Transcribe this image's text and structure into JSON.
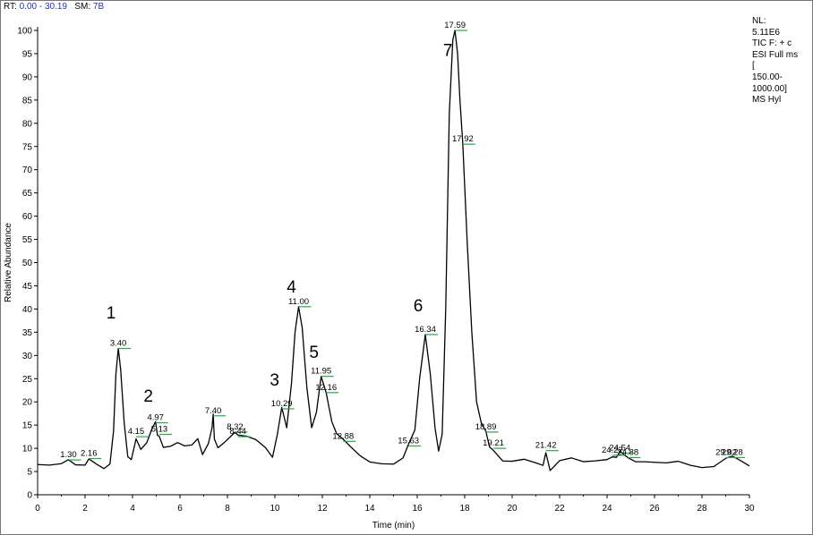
{
  "header": {
    "rt_label": "RT:",
    "rt_value": "0.00 - 30.19",
    "sm_label": "SM:",
    "sm_value": "7B"
  },
  "nl_info": [
    "NL:",
    "5.11E6",
    "TIC F: + c",
    "ESI Full ms",
    "[",
    "150.00-",
    "1000.00]",
    "MS Hyl"
  ],
  "colors": {
    "trace": "#000000",
    "peak_marker": "#22aa44",
    "header_value": "#2233bb"
  },
  "chart_data": {
    "type": "line",
    "xlabel": "Time (min)",
    "ylabel": "Relative Abundance",
    "xlim": [
      0,
      30
    ],
    "ylim": [
      0,
      100
    ],
    "x_ticks": [
      0,
      2,
      4,
      6,
      8,
      10,
      12,
      14,
      16,
      18,
      20,
      22,
      24,
      26,
      28,
      30
    ],
    "y_ticks": [
      0,
      5,
      10,
      15,
      20,
      25,
      30,
      35,
      40,
      45,
      50,
      55,
      60,
      65,
      70,
      75,
      80,
      85,
      90,
      95,
      100
    ],
    "peaks": [
      {
        "rt": 1.3,
        "y": 7.5,
        "label": "1.30"
      },
      {
        "rt": 2.16,
        "y": 7.8,
        "label": "2.16"
      },
      {
        "rt": 3.4,
        "y": 31.5,
        "label": "3.40",
        "marker": "1",
        "marker_y": 38
      },
      {
        "rt": 4.15,
        "y": 12.5,
        "label": "4.15"
      },
      {
        "rt": 4.97,
        "y": 15.5,
        "label": "4.97",
        "marker": "2",
        "marker_y": 20
      },
      {
        "rt": 5.13,
        "y": 13.0,
        "label": "5.13"
      },
      {
        "rt": 7.4,
        "y": 17.0,
        "label": "7.40"
      },
      {
        "rt": 8.32,
        "y": 13.5,
        "label": "8.32"
      },
      {
        "rt": 8.44,
        "y": 12.5,
        "label": "8.44"
      },
      {
        "rt": 10.29,
        "y": 18.5,
        "label": "10.29",
        "marker": "3",
        "marker_y": 23.5
      },
      {
        "rt": 11.0,
        "y": 40.5,
        "label": "11.00",
        "marker": "4",
        "marker_y": 43.5
      },
      {
        "rt": 11.95,
        "y": 25.5,
        "label": "11.95",
        "marker": "5",
        "marker_y": 29.5
      },
      {
        "rt": 12.16,
        "y": 22.0,
        "label": "12.16"
      },
      {
        "rt": 12.88,
        "y": 11.5,
        "label": "12.88"
      },
      {
        "rt": 15.63,
        "y": 10.5,
        "label": "15.63"
      },
      {
        "rt": 16.34,
        "y": 34.5,
        "label": "16.34",
        "marker": "6",
        "marker_y": 39.5
      },
      {
        "rt": 17.59,
        "y": 100,
        "label": "17.59",
        "marker": "7",
        "marker_y": 94.5
      },
      {
        "rt": 17.92,
        "y": 75.5,
        "label": "17.92"
      },
      {
        "rt": 18.89,
        "y": 13.5,
        "label": "18.89"
      },
      {
        "rt": 19.21,
        "y": 10.0,
        "label": "19.21"
      },
      {
        "rt": 21.42,
        "y": 9.5,
        "label": "21.42"
      },
      {
        "rt": 24.22,
        "y": 8.5,
        "label": "24.22"
      },
      {
        "rt": 24.54,
        "y": 9.0,
        "label": "24.54"
      },
      {
        "rt": 24.88,
        "y": 8.0,
        "label": "24.88"
      },
      {
        "rt": 29.02,
        "y": 8.0,
        "label": "29.02"
      },
      {
        "rt": 29.28,
        "y": 8.0,
        "label": "29.28"
      }
    ],
    "series": [
      {
        "x": [
          0.0,
          0.5,
          1.0,
          1.3,
          1.6,
          2.0,
          2.16,
          2.5,
          2.8,
          3.05,
          3.2,
          3.3,
          3.4,
          3.5,
          3.65,
          3.8,
          3.95,
          4.15,
          4.35,
          4.6,
          4.8,
          4.97,
          5.05,
          5.13,
          5.3,
          5.6,
          5.9,
          6.2,
          6.5,
          6.75,
          6.95,
          7.2,
          7.35,
          7.4,
          7.45,
          7.6,
          7.9,
          8.32,
          8.44,
          8.8,
          9.2,
          9.6,
          9.9,
          10.1,
          10.29,
          10.5,
          10.7,
          10.85,
          11.0,
          11.15,
          11.35,
          11.55,
          11.75,
          11.95,
          12.16,
          12.4,
          12.6,
          12.88,
          13.2,
          13.6,
          14.0,
          14.5,
          15.0,
          15.4,
          15.63,
          15.9,
          16.1,
          16.34,
          16.55,
          16.75,
          16.9,
          17.05,
          17.2,
          17.35,
          17.5,
          17.59,
          17.7,
          17.8,
          17.92,
          18.1,
          18.3,
          18.5,
          18.7,
          18.89,
          19.05,
          19.21,
          19.6,
          20.0,
          20.5,
          21.0,
          21.3,
          21.42,
          21.6,
          22.0,
          22.5,
          23.0,
          23.5,
          24.0,
          24.22,
          24.4,
          24.54,
          24.7,
          24.88,
          25.2,
          25.6,
          26.0,
          26.5,
          27.0,
          27.5,
          28.0,
          28.5,
          29.02,
          29.28,
          29.6,
          30.0
        ],
        "y": [
          6.5,
          6.0,
          6.3,
          7.5,
          6.8,
          6.8,
          7.8,
          6.2,
          5.2,
          6.5,
          14.0,
          26.0,
          31.5,
          27.0,
          15.0,
          8.0,
          7.8,
          12.5,
          10.0,
          11.0,
          13.5,
          15.5,
          13.0,
          13.0,
          10.5,
          10.3,
          10.8,
          10.2,
          10.8,
          12.5,
          9.0,
          11.0,
          14.0,
          17.0,
          12.0,
          10.5,
          11.8,
          13.5,
          12.5,
          12.2,
          11.8,
          10.5,
          8.5,
          13.0,
          18.5,
          14.0,
          24.0,
          35.0,
          40.5,
          36.0,
          23.0,
          14.0,
          17.5,
          25.5,
          22.0,
          16.0,
          13.0,
          11.5,
          10.0,
          8.5,
          7.5,
          7.0,
          6.5,
          7.5,
          10.5,
          14.0,
          25.0,
          34.5,
          26.0,
          14.0,
          9.0,
          13.0,
          40.0,
          82.0,
          98.0,
          100,
          95.0,
          85.0,
          75.5,
          55.0,
          35.0,
          20.0,
          15.0,
          13.5,
          10.5,
          10.0,
          7.5,
          7.0,
          7.2,
          6.6,
          6.5,
          9.5,
          5.5,
          7.2,
          7.5,
          6.8,
          7.4,
          8.0,
          8.5,
          8.0,
          9.0,
          8.3,
          8.0,
          7.5,
          7.5,
          7.0,
          6.5,
          6.8,
          6.3,
          6.2,
          6.5,
          8.0,
          8.0,
          7.0,
          6.2
        ]
      }
    ]
  }
}
